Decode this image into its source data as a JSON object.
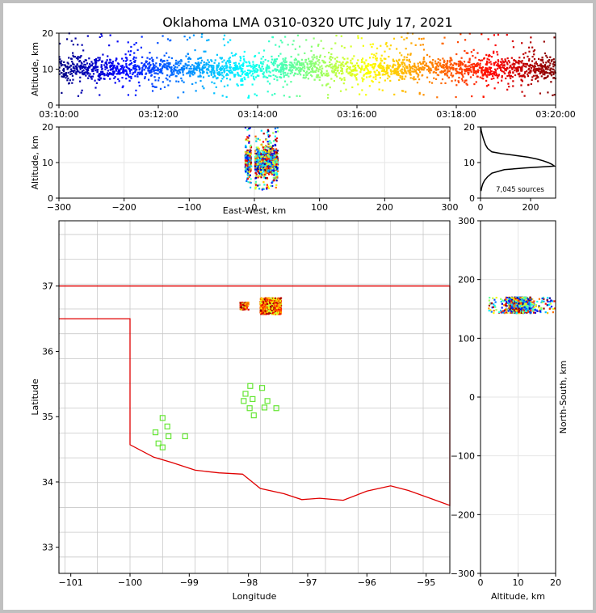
{
  "chart_data": [
    {
      "panel": "altitude-time",
      "type": "scatter",
      "title": "Oklahoma LMA 0310-0320 UTC July 17, 2021",
      "ylabel": "Altitude, km",
      "xlim": [
        "03:10:00",
        "03:20:00"
      ],
      "ylim": [
        0,
        20
      ],
      "xticks": [
        "03:10:00",
        "03:12:00",
        "03:14:00",
        "03:16:00",
        "03:18:00",
        "03:20:00"
      ],
      "yticks": [
        0,
        10,
        20
      ],
      "colormap": "jet, colored by time",
      "altitude_core_km": [
        7,
        13
      ],
      "altitude_spread_km": [
        2,
        20
      ]
    },
    {
      "panel": "altitude-eastwest",
      "type": "scatter",
      "xlabel": "East-West, km",
      "ylabel": "Altitude, km",
      "xlim": [
        -300,
        300
      ],
      "ylim": [
        0,
        20
      ],
      "xticks": [
        -300,
        -200,
        -100,
        0,
        100,
        200,
        300
      ],
      "yticks": [
        0,
        10,
        20
      ],
      "clusters": [
        {
          "x_range": [
            -14,
            -5
          ],
          "z_range": [
            2,
            20
          ]
        },
        {
          "x_range": [
            1,
            36
          ],
          "z_range": [
            2,
            20
          ]
        }
      ]
    },
    {
      "panel": "altitude-histogram",
      "type": "line",
      "xticks": [
        0,
        200
      ],
      "yticks": [
        0,
        10,
        20
      ],
      "xlim": [
        0,
        300
      ],
      "ylim": [
        0,
        20
      ],
      "annotation": "7,045 sources",
      "profile": [
        {
          "alt": 2.0,
          "count": 2
        },
        {
          "alt": 3.0,
          "count": 5
        },
        {
          "alt": 4.0,
          "count": 9
        },
        {
          "alt": 5.0,
          "count": 16
        },
        {
          "alt": 6.0,
          "count": 28
        },
        {
          "alt": 7.0,
          "count": 45
        },
        {
          "alt": 8.0,
          "count": 95
        },
        {
          "alt": 8.5,
          "count": 180
        },
        {
          "alt": 9.0,
          "count": 295
        },
        {
          "alt": 9.5,
          "count": 285
        },
        {
          "alt": 10.0,
          "count": 270
        },
        {
          "alt": 10.5,
          "count": 250
        },
        {
          "alt": 11.0,
          "count": 225
        },
        {
          "alt": 11.5,
          "count": 190
        },
        {
          "alt": 12.0,
          "count": 140
        },
        {
          "alt": 12.5,
          "count": 85
        },
        {
          "alt": 13.0,
          "count": 45
        },
        {
          "alt": 14.0,
          "count": 28
        },
        {
          "alt": 15.0,
          "count": 20
        },
        {
          "alt": 16.0,
          "count": 15
        },
        {
          "alt": 17.0,
          "count": 10
        },
        {
          "alt": 18.0,
          "count": 6
        },
        {
          "alt": 19.0,
          "count": 3
        },
        {
          "alt": 20.0,
          "count": 1
        }
      ]
    },
    {
      "panel": "map",
      "type": "scatter",
      "xlabel": "Longitude",
      "ylabel": "Latitude",
      "xlim": [
        -101.2,
        -94.6
      ],
      "ylim": [
        32.6,
        38.0
      ],
      "xticks": [
        -101,
        -100,
        -99,
        -98,
        -97,
        -96,
        -95
      ],
      "yticks": [
        33,
        34,
        35,
        36,
        37
      ],
      "storm_clusters": [
        {
          "lon": [
            -98.14,
            -98.0
          ],
          "lat": [
            36.64,
            36.75
          ]
        },
        {
          "lon": [
            -97.8,
            -97.45
          ],
          "lat": [
            36.57,
            36.82
          ]
        }
      ],
      "stations": [
        {
          "lon": -97.97,
          "lat": 35.47
        },
        {
          "lon": -97.77,
          "lat": 35.44
        },
        {
          "lon": -98.05,
          "lat": 35.35
        },
        {
          "lon": -97.93,
          "lat": 35.27
        },
        {
          "lon": -98.08,
          "lat": 35.24
        },
        {
          "lon": -97.68,
          "lat": 35.24
        },
        {
          "lon": -97.98,
          "lat": 35.13
        },
        {
          "lon": -97.73,
          "lat": 35.14
        },
        {
          "lon": -97.53,
          "lat": 35.13
        },
        {
          "lon": -97.91,
          "lat": 35.02
        },
        {
          "lon": -99.45,
          "lat": 34.98
        },
        {
          "lon": -99.37,
          "lat": 34.85
        },
        {
          "lon": -99.57,
          "lat": 34.76
        },
        {
          "lon": -99.35,
          "lat": 34.7
        },
        {
          "lon": -99.07,
          "lat": 34.7
        },
        {
          "lon": -99.52,
          "lat": 34.59
        },
        {
          "lon": -99.45,
          "lat": 34.53
        }
      ]
    },
    {
      "panel": "northsouth-altitude",
      "type": "scatter",
      "xlabel": "Altitude, km",
      "ylabel": "North-South, km",
      "xlim": [
        0,
        20
      ],
      "ylim": [
        -300,
        300
      ],
      "xticks": [
        0,
        10,
        20
      ],
      "yticks": [
        -300,
        -200,
        -100,
        0,
        100,
        200,
        300
      ],
      "ns_range_km": [
        143,
        170
      ]
    }
  ]
}
